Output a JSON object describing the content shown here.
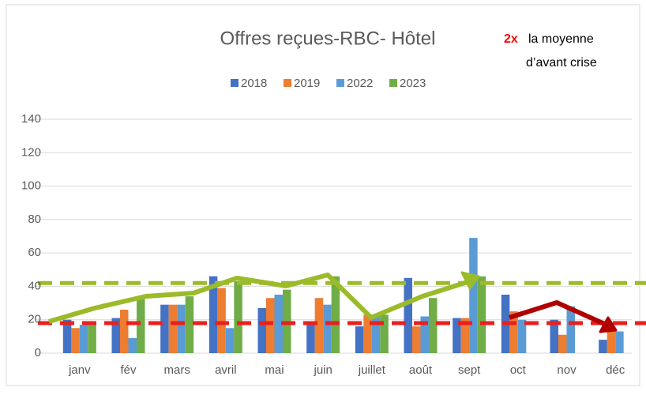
{
  "chart_data": {
    "type": "bar",
    "title": "Offres reçues-RBC- Hôtel",
    "annotations": [
      {
        "text": "2x",
        "color": "#ff0000"
      },
      {
        "text": "la moyenne",
        "color": "#000000"
      },
      {
        "text": "d’avant crise",
        "color": "#000000"
      }
    ],
    "categories": [
      "janv",
      "fév",
      "mars",
      "avril",
      "mai",
      "juin",
      "juillet",
      "août",
      "sept",
      "oct",
      "nov",
      "déc"
    ],
    "series": [
      {
        "name": "2018",
        "color": "#4472c4",
        "values": [
          20,
          21,
          29,
          46,
          27,
          18,
          16,
          45,
          21,
          35,
          20,
          8
        ]
      },
      {
        "name": "2019",
        "color": "#ed7d31",
        "values": [
          15,
          26,
          29,
          39,
          33,
          33,
          23,
          16,
          21,
          25,
          11,
          15
        ]
      },
      {
        "name": "2022",
        "color": "#5b9bd5",
        "values": [
          17,
          9,
          29,
          15,
          35,
          29,
          22,
          22,
          69,
          20,
          28,
          13
        ]
      },
      {
        "name": "2023",
        "color": "#70ad47",
        "values": [
          19,
          34,
          34,
          43,
          38,
          46,
          23,
          33,
          46,
          null,
          null,
          null
        ]
      }
    ],
    "reference_lines": [
      {
        "value": 42,
        "color": "#9bbb2a"
      },
      {
        "value": 18,
        "color": "#e8201e"
      }
    ],
    "ylim": [
      0,
      140
    ],
    "yticks": [
      0,
      20,
      40,
      60,
      80,
      100,
      120,
      140
    ],
    "grid": true,
    "legend": "top"
  }
}
